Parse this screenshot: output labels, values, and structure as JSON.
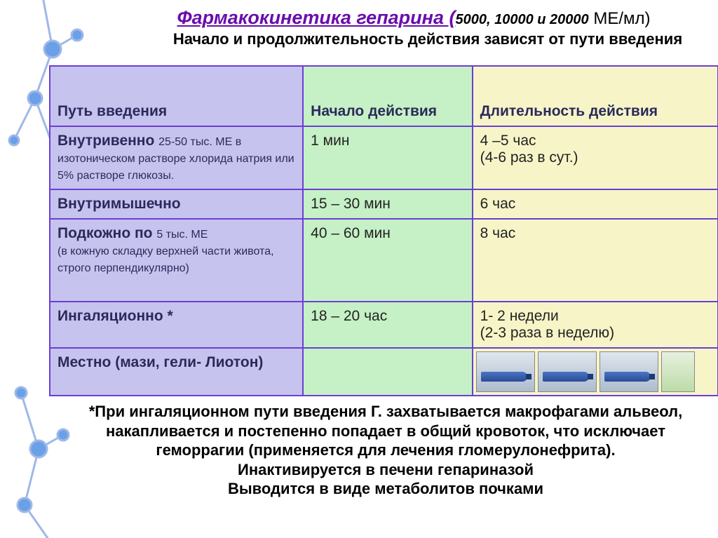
{
  "title": {
    "main": "Фармакокинетика гепарина (",
    "doses": "5000, 10000 и 20000",
    "units": "  МЕ/мл)",
    "title_color": "#6a0dad",
    "subtitle": "Начало и продолжительность действия зависят от пути введения"
  },
  "table": {
    "border_color": "#6a3fd4",
    "headers": {
      "route": "Путь введения",
      "onset": "Начало действия",
      "duration": "Длительность действия"
    },
    "header_bg": {
      "route": "#c7c3ef",
      "onset": "#c6f0c6",
      "duration": "#f7f5c8"
    },
    "cell_bg": {
      "route": "#c7c3ef",
      "onset": "#c6f0c6",
      "duration": "#f7f5c8"
    },
    "rows": [
      {
        "route_main": "Внутривенно ",
        "route_sub": "25-50 тыс. МЕ в изотоническом растворе хлорида натрия или 5% растворе глюкозы.",
        "onset": "1 мин",
        "duration": "4 –5 час\n(4-6 раз в сут.)"
      },
      {
        "route_main": "Внутримышечно",
        "route_sub": "",
        "onset": "15 – 30 мин",
        "duration": "6 час"
      },
      {
        "route_main": "Подкожно по ",
        "route_sub": "5 тыс. МЕ\n(в кожную складку верхней части живота, строго перпендикулярно)",
        "onset": "40 – 60 мин",
        "duration": "8 час",
        "tall": true
      },
      {
        "route_main": "Ингаляционно *",
        "route_sub": "",
        "onset": "18 – 20 час",
        "duration": "1- 2 недели\n(2-3 раза в неделю)"
      },
      {
        "route_main": "Местно  (мази, гели- Лиотон)",
        "route_sub": "",
        "onset": "",
        "duration_images": true
      }
    ]
  },
  "footnote": {
    "line1": "*При ингаляционном пути введения Г. захватывается макрофагами альвеол, накапливается и постепенно попадает в общий кровоток, что исключает геморрагии (применяется для лечения гломерулонефрита).",
    "line2": "Инактивируется в печени гепариназой",
    "line3": "Выводится в виде метаболитов почками"
  },
  "molecule": {
    "stroke": "#9fb8e8",
    "fill": "#6aa0e8"
  }
}
